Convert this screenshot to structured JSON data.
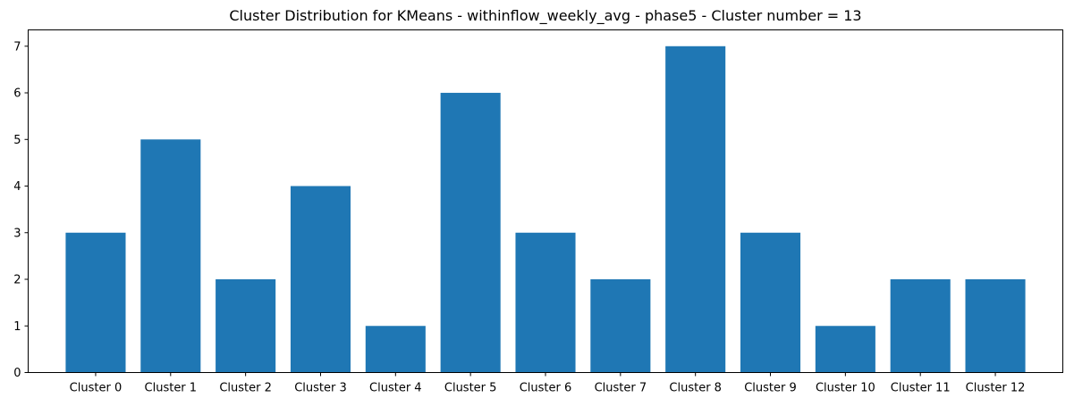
{
  "chart_data": {
    "type": "bar",
    "title": "Cluster Distribution for KMeans - withinflow_weekly_avg - phase5 - Cluster number = 13",
    "xlabel": "",
    "ylabel": "",
    "categories": [
      "Cluster 0",
      "Cluster 1",
      "Cluster 2",
      "Cluster 3",
      "Cluster 4",
      "Cluster 5",
      "Cluster 6",
      "Cluster 7",
      "Cluster 8",
      "Cluster 9",
      "Cluster 10",
      "Cluster 11",
      "Cluster 12"
    ],
    "values": [
      3,
      5,
      2,
      4,
      1,
      6,
      3,
      2,
      7,
      3,
      1,
      2,
      2
    ],
    "ylim": [
      0,
      7.35
    ],
    "yticks": [
      0,
      1,
      2,
      3,
      4,
      5,
      6,
      7
    ],
    "bar_color": "#1f77b4",
    "grid": false,
    "legend": "none"
  }
}
